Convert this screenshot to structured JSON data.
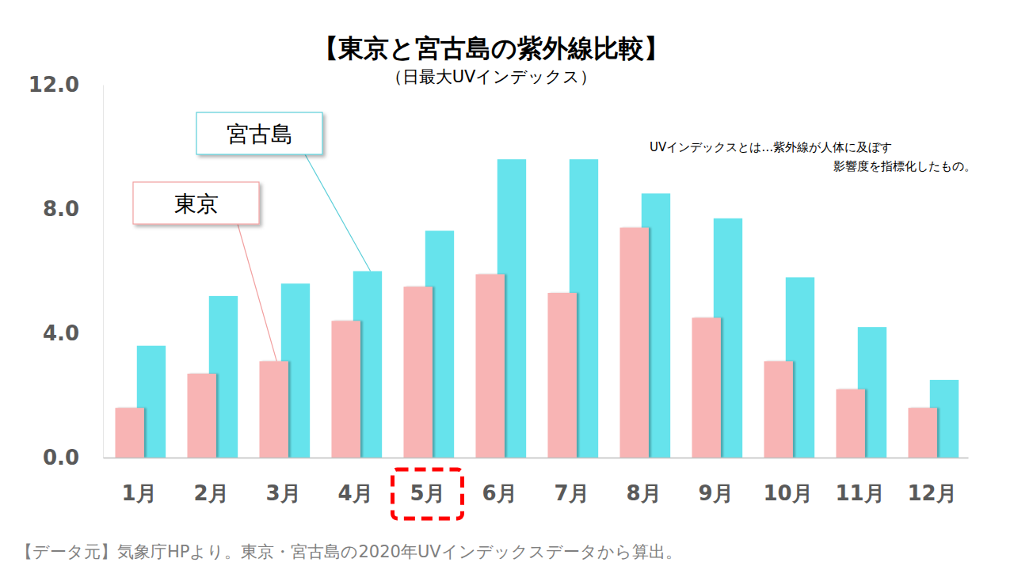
{
  "chart_data": {
    "type": "bar",
    "title": "【東京と宮古島の紫外線比較】",
    "subtitle": "（日最大UVインデックス）",
    "annotations": [
      "UVインデックスとは…紫外線が人体に及ぼす",
      "影響度を指標化したもの。"
    ],
    "source": "【データ元】気象庁HPより。東京・宮古島の2020年UVインデックスデータから算出。",
    "categories": [
      "1月",
      "2月",
      "3月",
      "4月",
      "5月",
      "6月",
      "7月",
      "8月",
      "9月",
      "10月",
      "11月",
      "12月"
    ],
    "series": [
      {
        "name": "東京",
        "color": "#f8b4b4",
        "values": [
          1.6,
          2.7,
          3.1,
          4.4,
          5.5,
          5.9,
          5.3,
          7.4,
          4.5,
          3.1,
          2.2,
          1.6
        ]
      },
      {
        "name": "宮古島",
        "color": "#66e3ec",
        "values": [
          3.6,
          5.2,
          5.6,
          6.0,
          7.3,
          9.6,
          9.6,
          8.5,
          7.7,
          5.8,
          4.2,
          2.5
        ]
      }
    ],
    "ylim": [
      0,
      12
    ],
    "yticks": [
      {
        "value": 0,
        "label": "0.0"
      },
      {
        "value": 4,
        "label": "4.0"
      },
      {
        "value": 8,
        "label": "8.0"
      },
      {
        "value": 12,
        "label": "12.0"
      }
    ],
    "grid": false
  }
}
